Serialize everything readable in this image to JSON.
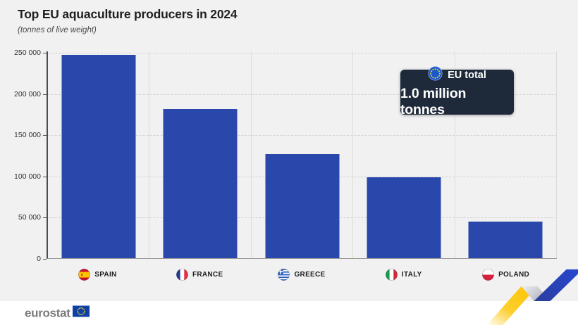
{
  "header": {
    "title": "Top EU aquaculture producers in 2024",
    "subtitle": "(tonnes of live weight)"
  },
  "badge": {
    "icon": "eu-flag-icon",
    "label": "EU total",
    "value": "1.0 million tonnes"
  },
  "chart_data": {
    "type": "bar",
    "title": "Top EU aquaculture producers in 2024",
    "subtitle": "(tonnes of live weight)",
    "unit": "tonnes of live weight",
    "categories": [
      "SPAIN",
      "FRANCE",
      "GREECE",
      "ITALY",
      "POLAND"
    ],
    "flags": [
      "spain",
      "france",
      "greece",
      "italy",
      "poland"
    ],
    "values": [
      247000,
      181000,
      126000,
      98000,
      44000
    ],
    "ylim": [
      0,
      250000
    ],
    "ytick_interval": 50000,
    "ytick_labels": [
      "0",
      "50 000",
      "100 000",
      "150 000",
      "200 000",
      "250 000"
    ],
    "grid": "horizontal dashed gridlines + vertical column separators",
    "legend": "none",
    "bar_color": "#2a48ac",
    "annotation": {
      "label": "EU total",
      "value": "1.0 million tonnes"
    }
  },
  "footer": {
    "logo_text": "eurostat",
    "logo_flag": "eu-flag-icon"
  },
  "icons": {
    "badge_flag": "eu-flag-icon",
    "footer_flag": "eu-flag-icon",
    "decoration": "trend-ribbon",
    "country_flags": [
      "spain-flag-icon",
      "france-flag-icon",
      "greece-flag-icon",
      "italy-flag-icon",
      "poland-flag-icon"
    ]
  },
  "colors": {
    "background": "#f1f1f2",
    "footer_background": "#ffffff",
    "bar": "#2a48ac",
    "badge_background": "#1e2a3a",
    "ribbon_yellow": "#fdc608",
    "ribbon_blue": "#2547cf",
    "ribbon_silver": "#b9bbc2",
    "eu_flag_blue": "#1b59c9",
    "eu_star_yellow": "#ffd617"
  }
}
